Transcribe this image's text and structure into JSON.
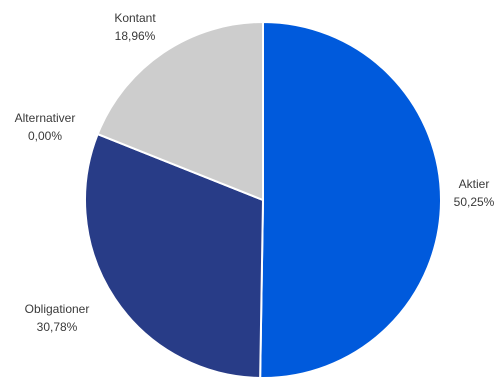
{
  "chart_data": {
    "type": "pie",
    "title": "",
    "slices": [
      {
        "category": "Aktier",
        "value": 50.25,
        "label": "50,25%",
        "color": "#005adc"
      },
      {
        "category": "Obligationer",
        "value": 30.78,
        "label": "30,78%",
        "color": "#283c87"
      },
      {
        "category": "Alternativer",
        "value": 0.0,
        "label": "0,00%",
        "color": "#a5a5a5"
      },
      {
        "category": "Kontant",
        "value": 18.96,
        "label": "18,96%",
        "color": "#cdcdcd"
      }
    ],
    "legend": "none",
    "start_angle_deg": 0,
    "direction": "clockwise"
  }
}
